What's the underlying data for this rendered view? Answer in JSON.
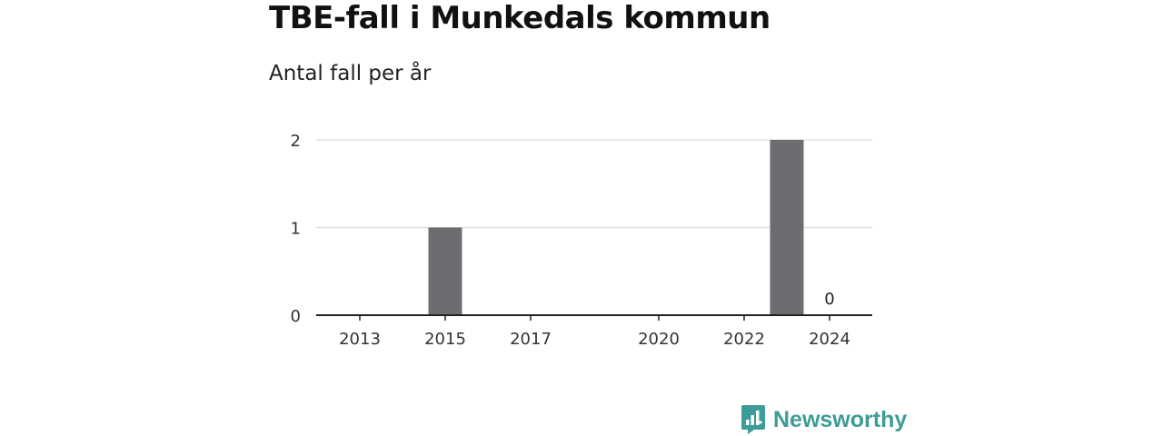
{
  "chart_data": {
    "type": "bar",
    "title": "TBE-fall i Munkedals kommun",
    "subtitle": "Antal fall per år",
    "categories": [
      "2013",
      "2014",
      "2015",
      "2016",
      "2017",
      "2018",
      "2019",
      "2020",
      "2021",
      "2022",
      "2023",
      "2024"
    ],
    "values": [
      0,
      0,
      1,
      0,
      0,
      0,
      0,
      0,
      0,
      0,
      2,
      0
    ],
    "x_tick_labels": [
      "2013",
      "2015",
      "2017",
      "2020",
      "2022",
      "2024"
    ],
    "y_ticks": [
      0,
      1,
      2
    ],
    "ylim": [
      0,
      2
    ],
    "grid": true,
    "annotations": [
      {
        "category": "2024",
        "text": "0"
      }
    ],
    "bar_color": "#6d6c71"
  },
  "brand": {
    "name": "Newsworthy",
    "color": "#3d9c97"
  }
}
